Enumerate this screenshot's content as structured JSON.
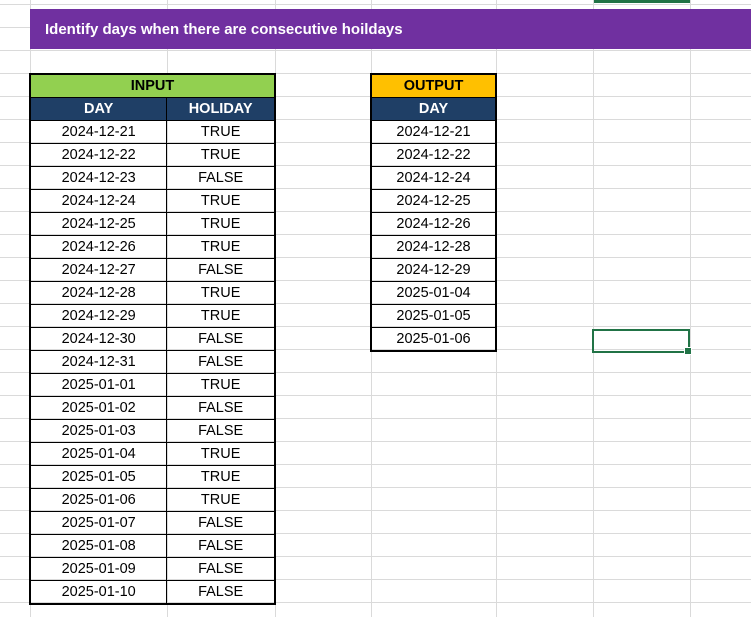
{
  "title": "Identify days when there are consecutive hoildays",
  "input": {
    "header": "INPUT",
    "columns": [
      "DAY",
      "HOLIDAY"
    ],
    "rows": [
      [
        "2024-12-21",
        "TRUE"
      ],
      [
        "2024-12-22",
        "TRUE"
      ],
      [
        "2024-12-23",
        "FALSE"
      ],
      [
        "2024-12-24",
        "TRUE"
      ],
      [
        "2024-12-25",
        "TRUE"
      ],
      [
        "2024-12-26",
        "TRUE"
      ],
      [
        "2024-12-27",
        "FALSE"
      ],
      [
        "2024-12-28",
        "TRUE"
      ],
      [
        "2024-12-29",
        "TRUE"
      ],
      [
        "2024-12-30",
        "FALSE"
      ],
      [
        "2024-12-31",
        "FALSE"
      ],
      [
        "2025-01-01",
        "TRUE"
      ],
      [
        "2025-01-02",
        "FALSE"
      ],
      [
        "2025-01-03",
        "FALSE"
      ],
      [
        "2025-01-04",
        "TRUE"
      ],
      [
        "2025-01-05",
        "TRUE"
      ],
      [
        "2025-01-06",
        "TRUE"
      ],
      [
        "2025-01-07",
        "FALSE"
      ],
      [
        "2025-01-08",
        "FALSE"
      ],
      [
        "2025-01-09",
        "FALSE"
      ],
      [
        "2025-01-10",
        "FALSE"
      ]
    ]
  },
  "output": {
    "header": "OUTPUT",
    "columns": [
      "DAY"
    ],
    "rows": [
      "2024-12-21",
      "2024-12-22",
      "2024-12-24",
      "2024-12-25",
      "2024-12-26",
      "2024-12-28",
      "2024-12-29",
      "2025-01-04",
      "2025-01-05",
      "2025-01-06"
    ]
  },
  "colors": {
    "title_bg": "#7030a0",
    "input_header_bg": "#92d050",
    "output_header_bg": "#ffc000",
    "column_header_bg": "#1f3f66",
    "selection": "#217346"
  }
}
